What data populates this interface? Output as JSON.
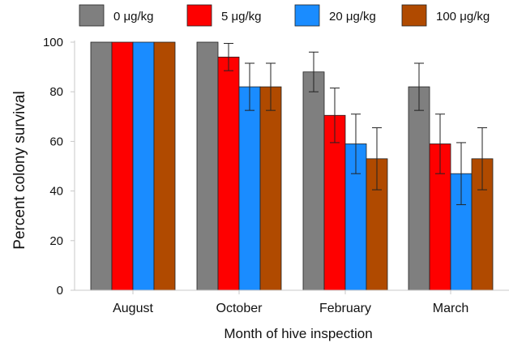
{
  "chart_data": {
    "type": "bar",
    "title": "",
    "xlabel": "Month of hive inspection",
    "ylabel": "Percent colony survival",
    "ylim": [
      0,
      100
    ],
    "yticks": [
      0,
      20,
      40,
      60,
      80,
      100
    ],
    "grid": false,
    "legend_position": "top",
    "categories": [
      "August",
      "October",
      "February",
      "March"
    ],
    "series": [
      {
        "name": "0 μg/kg",
        "color": "#7f7f7f",
        "values": [
          100,
          100,
          88,
          82
        ],
        "error": [
          0,
          0,
          8,
          9.5
        ]
      },
      {
        "name": "5 μg/kg",
        "color": "#fe0000",
        "values": [
          100,
          94,
          70.5,
          59
        ],
        "error": [
          0,
          5.5,
          11,
          12
        ]
      },
      {
        "name": "20 μg/kg",
        "color": "#1a8cff",
        "values": [
          100,
          82,
          59,
          47
        ],
        "error": [
          0,
          9.5,
          12,
          12.5
        ]
      },
      {
        "name": "100 μg/kg",
        "color": "#b04a00",
        "values": [
          100,
          82,
          53,
          53
        ],
        "error": [
          0,
          9.5,
          12.5,
          12.5
        ]
      }
    ]
  }
}
